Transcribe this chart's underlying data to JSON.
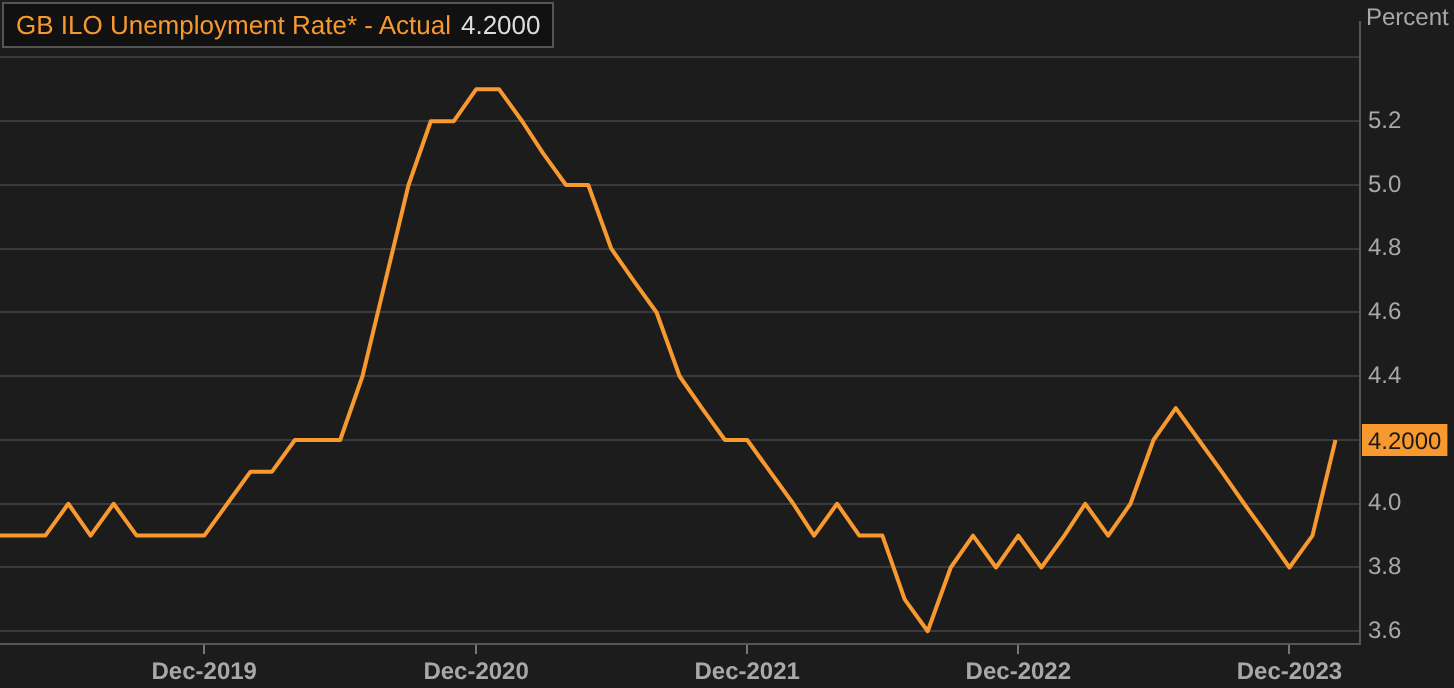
{
  "chart_data": {
    "type": "line",
    "title": "GB ILO Unemployment Rate* - Actual",
    "ylabel": "Percent",
    "x": [
      "2019-03",
      "2019-04",
      "2019-05",
      "2019-06",
      "2019-07",
      "2019-08",
      "2019-09",
      "2019-10",
      "2019-11",
      "2019-12",
      "2020-01",
      "2020-02",
      "2020-03",
      "2020-04",
      "2020-05",
      "2020-06",
      "2020-07",
      "2020-08",
      "2020-09",
      "2020-10",
      "2020-11",
      "2020-12",
      "2021-01",
      "2021-02",
      "2021-03",
      "2021-04",
      "2021-05",
      "2021-06",
      "2021-07",
      "2021-08",
      "2021-09",
      "2021-10",
      "2021-11",
      "2021-12",
      "2022-01",
      "2022-02",
      "2022-03",
      "2022-04",
      "2022-05",
      "2022-06",
      "2022-07",
      "2022-08",
      "2022-09",
      "2022-10",
      "2022-11",
      "2022-12",
      "2023-01",
      "2023-02",
      "2023-03",
      "2023-04",
      "2023-05",
      "2023-06",
      "2023-07",
      "2023-08",
      "2023-09",
      "2023-10",
      "2023-11",
      "2023-12",
      "2024-01",
      "2024-02"
    ],
    "series": [
      {
        "color": "#f7992f",
        "values": [
          3.9,
          3.9,
          3.9,
          4.0,
          3.9,
          4.0,
          3.9,
          3.9,
          3.9,
          3.9,
          4.0,
          4.1,
          4.1,
          4.2,
          4.2,
          4.2,
          4.4,
          4.7,
          5.0,
          5.2,
          5.2,
          5.3,
          5.3,
          5.2,
          5.1,
          5.0,
          5.0,
          4.8,
          4.7,
          4.6,
          4.4,
          4.3,
          4.2,
          4.2,
          4.1,
          4.0,
          3.9,
          4.0,
          3.9,
          3.9,
          3.7,
          3.6,
          3.8,
          3.9,
          3.8,
          3.9,
          3.8,
          3.9,
          4.0,
          3.9,
          4.0,
          4.2,
          4.3,
          4.2,
          4.1,
          4.0,
          3.9,
          3.8,
          3.9,
          4.2
        ],
        "value_labels": [
          null,
          null,
          null,
          null,
          null,
          null,
          null,
          null,
          null,
          null,
          null,
          null,
          null,
          null,
          null,
          null,
          null,
          null,
          null,
          null,
          null,
          null,
          null,
          null,
          null,
          null,
          null,
          null,
          null,
          null,
          null,
          null,
          null,
          null,
          null,
          null,
          null,
          null,
          null,
          null,
          null,
          null,
          null,
          null,
          null,
          null,
          null,
          null,
          null,
          null,
          null,
          null,
          null,
          null,
          null,
          null,
          null,
          null,
          null,
          "4.2000"
        ]
      }
    ],
    "xlim": [
      "2019-03",
      "2024-03-05"
    ],
    "xticks": [
      {
        "value": "2019-12",
        "label": "Dec-2019"
      },
      {
        "value": "2020-12",
        "label": "Dec-2020"
      },
      {
        "value": "2021-12",
        "label": "Dec-2021"
      },
      {
        "value": "2022-12",
        "label": "Dec-2022"
      },
      {
        "value": "2023-12",
        "label": "Dec-2023"
      }
    ],
    "ylim": [
      3.56,
      5.51
    ],
    "yticks": [
      3.6,
      3.8,
      {
        "value": 4.0,
        "label": "4.0"
      },
      {
        "value": 4.2,
        "label": null
      },
      4.4,
      4.6,
      4.8,
      {
        "value": 5.0,
        "label": "5.0"
      },
      5.2,
      {
        "value": 5.4,
        "label": null
      }
    ],
    "grid": "y",
    "legend": false,
    "marker": "none",
    "line_style": "solid"
  }
}
